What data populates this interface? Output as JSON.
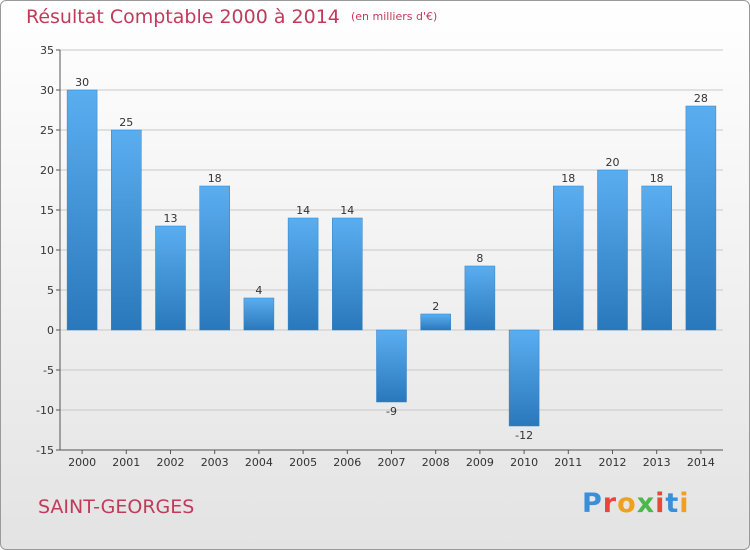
{
  "header": {
    "title": "Résultat Comptable 2000 à 2014",
    "unit": "(en milliers d'€)"
  },
  "footer": {
    "commune": "SAINT-GEORGES",
    "logo_text": "Proxiti",
    "logo_colors": [
      "#3a8fd8",
      "#e8483a",
      "#f0a020",
      "#4ab84a",
      "#e8483a",
      "#3a8fd8",
      "#f0a020"
    ]
  },
  "colors": {
    "bar_light": "#5aaef0",
    "bar_dark": "#2a78bc",
    "title": "#c13a5a",
    "grid": "#c8c8c8"
  },
  "chart_data": {
    "type": "bar",
    "categories": [
      "2000",
      "2001",
      "2002",
      "2003",
      "2004",
      "2005",
      "2006",
      "2007",
      "2008",
      "2009",
      "2010",
      "2011",
      "2012",
      "2013",
      "2014"
    ],
    "values": [
      30,
      25,
      13,
      18,
      4,
      14,
      14,
      -9,
      2,
      8,
      -12,
      18,
      20,
      18,
      28
    ],
    "ylim": [
      -15,
      35
    ],
    "yticks": [
      35,
      30,
      25,
      20,
      15,
      10,
      5,
      0,
      -5,
      -10,
      -15
    ],
    "grid": true,
    "legend": "none"
  }
}
